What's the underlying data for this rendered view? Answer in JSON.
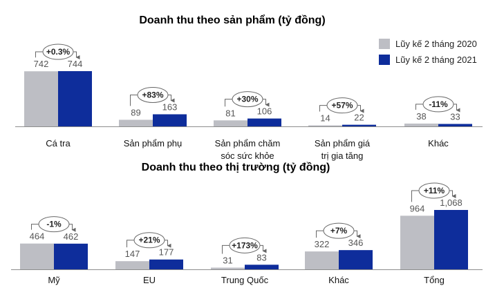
{
  "colors": {
    "series_2020": "#BDBEC4",
    "series_2021": "#0E2D9B",
    "axis": "#8C8C8C",
    "callout": "#666666"
  },
  "chart_data": [
    {
      "type": "bar",
      "title": "Doanh thu theo sản phẩm (tỷ đồng)",
      "categories": [
        [
          "Cá tra"
        ],
        [
          "Sản phẩm phụ"
        ],
        [
          "Sản phẩm chăm",
          "sóc sức khỏe"
        ],
        [
          "Sản phẩm giá",
          "trị gia tăng"
        ],
        [
          "Khác"
        ]
      ],
      "series": [
        {
          "name": "Lũy kế 2 tháng 2020",
          "values": [
            742,
            89,
            81,
            14,
            38
          ],
          "labels": [
            "742",
            "89",
            "81",
            "14",
            "38"
          ]
        },
        {
          "name": "Lũy kế 2 tháng 2021",
          "values": [
            744,
            163,
            106,
            22,
            33
          ],
          "labels": [
            "744",
            "163",
            "106",
            "22",
            "33"
          ]
        }
      ],
      "growth": [
        "+0.3%",
        "+83%",
        "+30%",
        "+57%",
        "-11%"
      ],
      "ylim": [
        0,
        744
      ],
      "legend": "top-right",
      "grid": false
    },
    {
      "type": "bar",
      "title": "Doanh thu theo thị trường (tỷ đồng)",
      "categories": [
        [
          "Mỹ"
        ],
        [
          "EU"
        ],
        [
          "Trung Quốc"
        ],
        [
          "Khác"
        ],
        [
          "Tổng"
        ]
      ],
      "series": [
        {
          "name": "Lũy kế 2 tháng 2020",
          "values": [
            464,
            147,
            31,
            322,
            964
          ],
          "labels": [
            "464",
            "147",
            "31",
            "322",
            "964"
          ]
        },
        {
          "name": "Lũy kế 2 tháng 2021",
          "values": [
            462,
            177,
            83,
            346,
            1068
          ],
          "labels": [
            "462",
            "177",
            "83",
            "346",
            "1,068"
          ]
        }
      ],
      "growth": [
        "-1%",
        "+21%",
        "+173%",
        "+7%",
        "+11%"
      ],
      "ylim": [
        0,
        1068
      ],
      "grid": false
    }
  ]
}
